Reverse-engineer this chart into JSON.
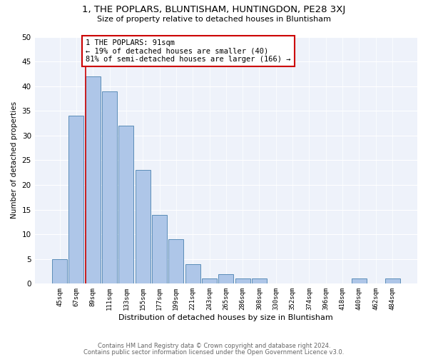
{
  "title": "1, THE POPLARS, BLUNTISHAM, HUNTINGDON, PE28 3XJ",
  "subtitle": "Size of property relative to detached houses in Bluntisham",
  "xlabel": "Distribution of detached houses by size in Bluntisham",
  "ylabel": "Number of detached properties",
  "footer_line1": "Contains HM Land Registry data © Crown copyright and database right 2024.",
  "footer_line2": "Contains public sector information licensed under the Open Government Licence v3.0.",
  "bar_labels": [
    "45sqm",
    "67sqm",
    "89sqm",
    "111sqm",
    "133sqm",
    "155sqm",
    "177sqm",
    "199sqm",
    "221sqm",
    "243sqm",
    "265sqm",
    "286sqm",
    "308sqm",
    "330sqm",
    "352sqm",
    "374sqm",
    "396sqm",
    "418sqm",
    "440sqm",
    "462sqm",
    "484sqm"
  ],
  "bar_values": [
    5,
    34,
    42,
    39,
    32,
    23,
    14,
    9,
    4,
    1,
    2,
    1,
    1,
    0,
    0,
    0,
    0,
    0,
    1,
    0,
    1
  ],
  "bar_color": "#aec6e8",
  "bar_edge_color": "#5b8db8",
  "vline_bar_index": 2,
  "vline_color": "#cc0000",
  "annotation_text": "1 THE POPLARS: 91sqm\n← 19% of detached houses are smaller (40)\n81% of semi-detached houses are larger (166) →",
  "annotation_box_edge": "#cc0000",
  "background_color": "#eef2fa",
  "ylim": [
    0,
    50
  ],
  "yticks": [
    0,
    5,
    10,
    15,
    20,
    25,
    30,
    35,
    40,
    45,
    50
  ]
}
